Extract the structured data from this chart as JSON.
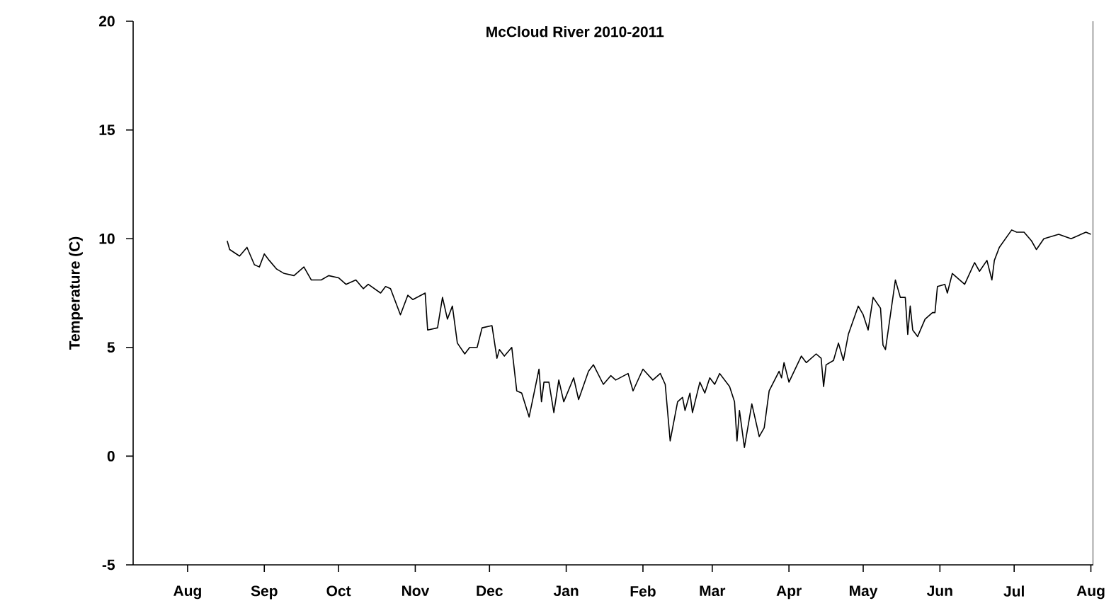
{
  "chart_data": {
    "type": "line",
    "title": "McCloud River 2010-2011",
    "ylabel": "Temperature (C)",
    "xlim": [
      "2010-07-10",
      "2011-08-02"
    ],
    "ylim": [
      -5,
      20
    ],
    "yticks": [
      -5,
      0,
      5,
      10,
      15,
      20
    ],
    "xticks": [
      {
        "value": "2010-08-01",
        "label": "Aug"
      },
      {
        "value": "2010-09-01",
        "label": "Sep"
      },
      {
        "value": "2010-10-01",
        "label": "Oct"
      },
      {
        "value": "2010-11-01",
        "label": "Nov"
      },
      {
        "value": "2010-12-01",
        "label": "Dec"
      },
      {
        "value": "2011-01-01",
        "label": "Jan"
      },
      {
        "value": "2011-02-01",
        "label": "Feb"
      },
      {
        "value": "2011-03-01",
        "label": "Mar"
      },
      {
        "value": "2011-04-01",
        "label": "Apr"
      },
      {
        "value": "2011-05-01",
        "label": "May"
      },
      {
        "value": "2011-06-01",
        "label": "Jun"
      },
      {
        "value": "2011-07-01",
        "label": "Jul"
      },
      {
        "value": "2011-08-01",
        "label": "Aug"
      }
    ],
    "grid": false,
    "marker": "none",
    "line_style": "solid",
    "x": [
      "2010-08-17",
      "2010-08-18",
      "2010-08-22",
      "2010-08-25",
      "2010-08-28",
      "2010-08-30",
      "2010-09-01",
      "2010-09-03",
      "2010-09-06",
      "2010-09-09",
      "2010-09-13",
      "2010-09-17",
      "2010-09-20",
      "2010-09-24",
      "2010-09-27",
      "2010-10-01",
      "2010-10-04",
      "2010-10-08",
      "2010-10-11",
      "2010-10-13",
      "2010-10-18",
      "2010-10-20",
      "2010-10-22",
      "2010-10-26",
      "2010-10-29",
      "2010-10-31",
      "2010-11-05",
      "2010-11-06",
      "2010-11-10",
      "2010-11-12",
      "2010-11-14",
      "2010-11-16",
      "2010-11-18",
      "2010-11-21",
      "2010-11-23",
      "2010-11-26",
      "2010-11-28",
      "2010-12-02",
      "2010-12-04",
      "2010-12-05",
      "2010-12-07",
      "2010-12-10",
      "2010-12-12",
      "2010-12-14",
      "2010-12-17",
      "2010-12-21",
      "2010-12-22",
      "2010-12-23",
      "2010-12-25",
      "2010-12-27",
      "2010-12-29",
      "2010-12-31",
      "2011-01-04",
      "2011-01-06",
      "2011-01-10",
      "2011-01-12",
      "2011-01-16",
      "2011-01-19",
      "2011-01-21",
      "2011-01-26",
      "2011-01-28",
      "2011-02-01",
      "2011-02-05",
      "2011-02-08",
      "2011-02-10",
      "2011-02-12",
      "2011-02-15",
      "2011-02-17",
      "2011-02-18",
      "2011-02-20",
      "2011-02-21",
      "2011-02-24",
      "2011-02-26",
      "2011-02-28",
      "2011-03-02",
      "2011-03-04",
      "2011-03-08",
      "2011-03-10",
      "2011-03-11",
      "2011-03-12",
      "2011-03-14",
      "2011-03-17",
      "2011-03-20",
      "2011-03-22",
      "2011-03-24",
      "2011-03-28",
      "2011-03-29",
      "2011-03-30",
      "2011-04-01",
      "2011-04-06",
      "2011-04-08",
      "2011-04-12",
      "2011-04-14",
      "2011-04-15",
      "2011-04-16",
      "2011-04-19",
      "2011-04-21",
      "2011-04-23",
      "2011-04-25",
      "2011-04-29",
      "2011-05-01",
      "2011-05-03",
      "2011-05-05",
      "2011-05-08",
      "2011-05-09",
      "2011-05-10",
      "2011-05-14",
      "2011-05-16",
      "2011-05-18",
      "2011-05-19",
      "2011-05-20",
      "2011-05-21",
      "2011-05-23",
      "2011-05-26",
      "2011-05-29",
      "2011-05-30",
      "2011-05-31",
      "2011-06-03",
      "2011-06-04",
      "2011-06-06",
      "2011-06-11",
      "2011-06-15",
      "2011-06-17",
      "2011-06-20",
      "2011-06-22",
      "2011-06-23",
      "2011-06-25",
      "2011-06-30",
      "2011-07-02",
      "2011-07-05",
      "2011-07-08",
      "2011-07-10",
      "2011-07-13",
      "2011-07-19",
      "2011-07-24",
      "2011-07-30",
      "2011-08-01"
    ],
    "series": [
      {
        "color": "#000000",
        "values": [
          9.9,
          9.5,
          9.2,
          9.6,
          8.8,
          8.7,
          9.3,
          9.0,
          8.6,
          8.4,
          8.3,
          8.7,
          8.1,
          8.1,
          8.3,
          8.2,
          7.9,
          8.1,
          7.7,
          7.9,
          7.5,
          7.8,
          7.7,
          6.5,
          7.4,
          7.2,
          7.5,
          5.8,
          5.9,
          7.3,
          6.3,
          6.9,
          5.2,
          4.7,
          5.0,
          5.0,
          5.9,
          6.0,
          4.5,
          4.9,
          4.6,
          5.0,
          3.0,
          2.9,
          1.8,
          4.0,
          2.5,
          3.4,
          3.4,
          2.0,
          3.5,
          2.5,
          3.6,
          2.6,
          3.9,
          4.2,
          3.3,
          3.7,
          3.5,
          3.8,
          3.0,
          4.0,
          3.5,
          3.8,
          3.3,
          0.7,
          2.5,
          2.7,
          2.1,
          2.9,
          2.0,
          3.4,
          2.9,
          3.6,
          3.3,
          3.8,
          3.2,
          2.5,
          0.7,
          2.1,
          0.4,
          2.4,
          0.9,
          1.3,
          3.0,
          3.9,
          3.6,
          4.3,
          3.4,
          4.6,
          4.3,
          4.7,
          4.5,
          3.2,
          4.2,
          4.4,
          5.2,
          4.4,
          5.6,
          6.9,
          6.5,
          5.8,
          7.3,
          6.8,
          5.1,
          4.9,
          8.1,
          7.3,
          7.3,
          5.6,
          6.9,
          5.8,
          5.5,
          6.3,
          6.6,
          6.6,
          7.8,
          7.9,
          7.5,
          8.4,
          7.9,
          8.9,
          8.5,
          9.0,
          8.1,
          9.0,
          9.6,
          10.4,
          10.3,
          10.3,
          9.9,
          9.5,
          10.0,
          10.2,
          10.0,
          10.3,
          10.2
        ]
      }
    ]
  }
}
